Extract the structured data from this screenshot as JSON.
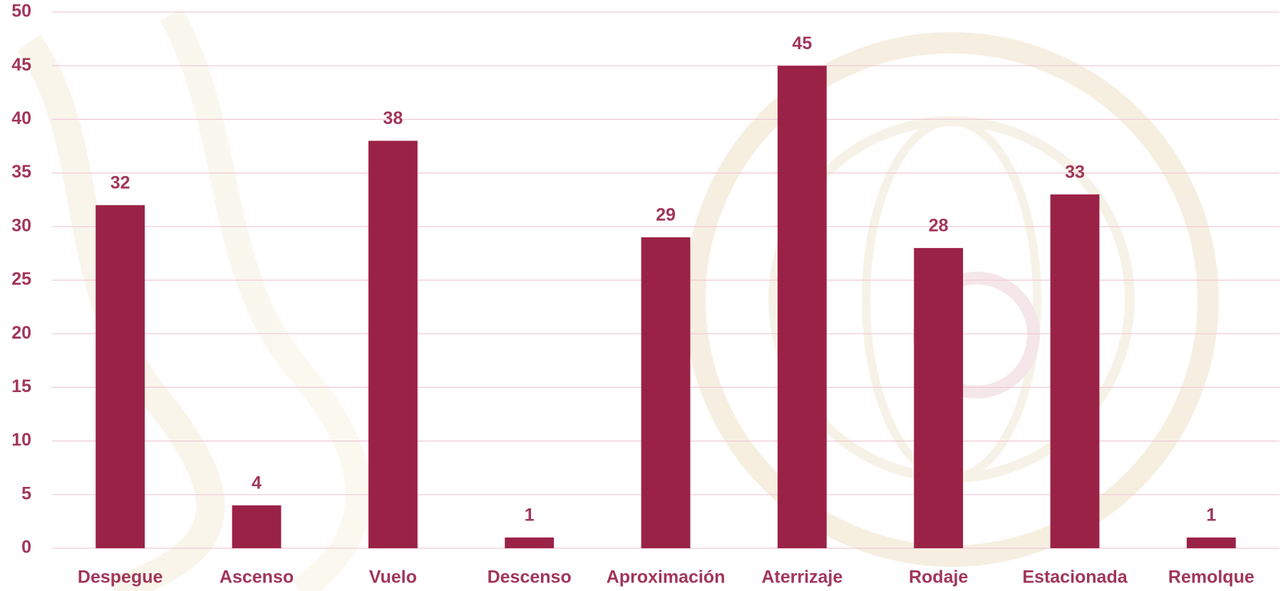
{
  "chart_data": {
    "type": "bar",
    "categories": [
      "Despegue",
      "Ascenso",
      "Vuelo",
      "Descenso",
      "Aproximación",
      "Aterrizaje",
      "Rodaje",
      "Estacionada",
      "Remolque"
    ],
    "values": [
      32,
      4,
      38,
      1,
      29,
      45,
      28,
      33,
      1
    ],
    "color": "#9b2247",
    "ylim": [
      0,
      50
    ],
    "yticks": [
      0,
      5,
      10,
      15,
      20,
      25,
      30,
      35,
      40,
      45,
      50
    ],
    "grid": true
  }
}
